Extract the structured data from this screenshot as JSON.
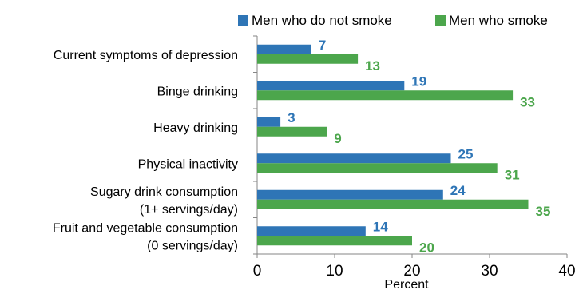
{
  "chart_data": {
    "type": "bar",
    "orientation": "horizontal",
    "title": "",
    "xlabel": "Percent",
    "ylabel": "",
    "xlim": [
      0,
      40
    ],
    "x_ticks": [
      "0",
      "10",
      "20",
      "30",
      "40"
    ],
    "grid": false,
    "legend_position": "top",
    "categories": [
      [
        "Current symptoms of depression"
      ],
      [
        "Binge drinking"
      ],
      [
        "Heavy drinking"
      ],
      [
        "Physical inactivity"
      ],
      [
        "Sugary drink consumption",
        "(1+ servings/day)"
      ],
      [
        "Fruit and vegetable consumption",
        "(0 servings/day)"
      ]
    ],
    "series": [
      {
        "name": "Men who do not smoke",
        "color": "#2e75b6",
        "values": [
          7,
          19,
          3,
          25,
          24,
          14
        ],
        "labels": [
          "7",
          "19",
          "3",
          "25",
          "24",
          "14"
        ]
      },
      {
        "name": "Men who smoke",
        "color": "#4ca64c",
        "values": [
          13,
          33,
          9,
          31,
          35,
          20
        ],
        "labels": [
          "13",
          "33",
          "9",
          "31",
          "35",
          "20"
        ]
      }
    ]
  }
}
